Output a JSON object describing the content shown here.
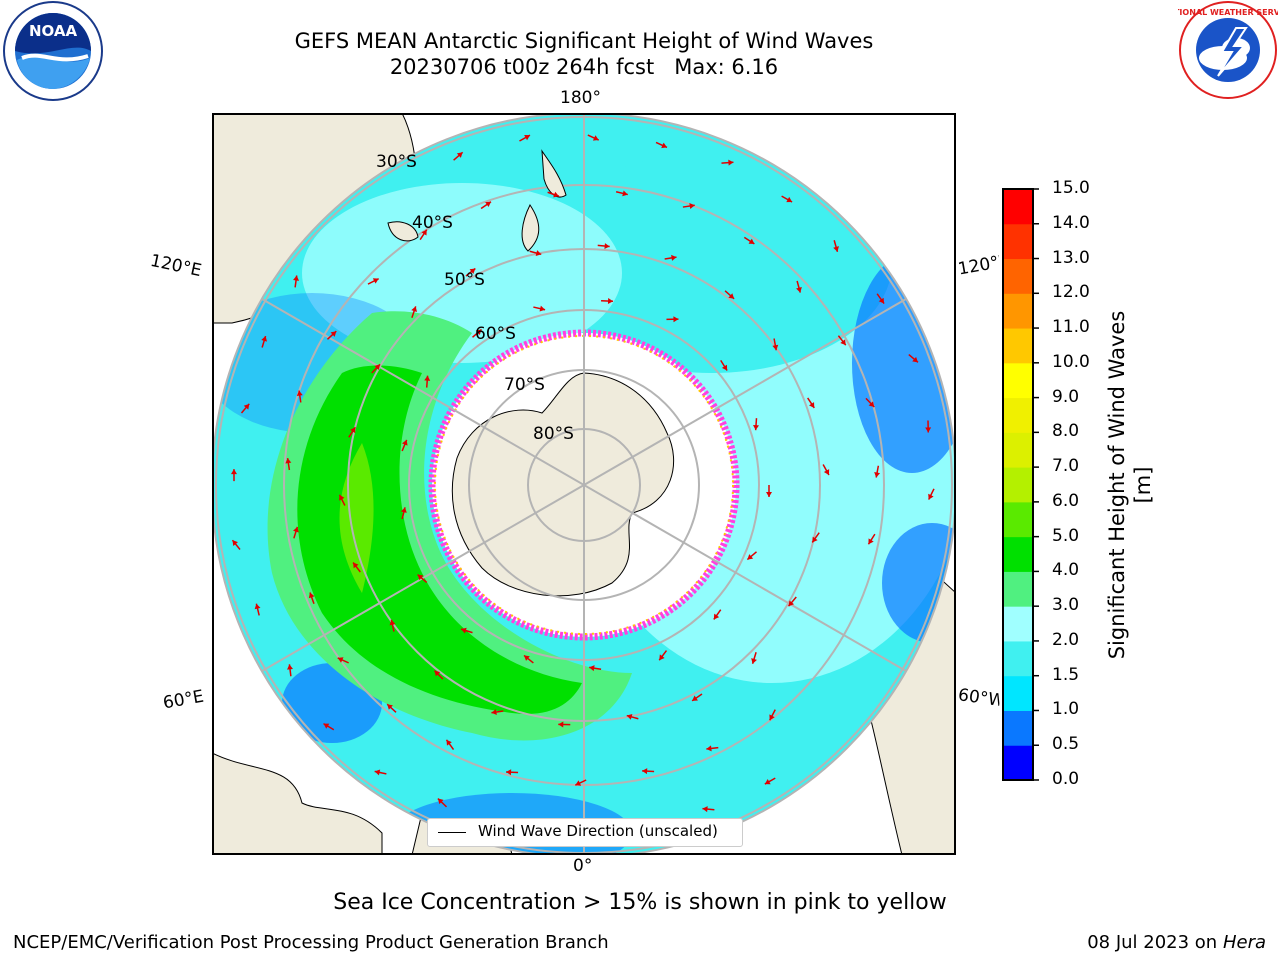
{
  "title": {
    "line1": "GEFS MEAN Antarctic Significant Height of Wind Waves",
    "line2": "20230706 t00z 264h fcst   Max: 6.16"
  },
  "logos": {
    "left": {
      "name": "noaa-logo",
      "text": "NOAA"
    },
    "right": {
      "name": "nws-logo",
      "text": "NATIONAL WEATHER SERVICE"
    }
  },
  "map": {
    "longitude_labels": {
      "top": "180°",
      "bottom": "0°",
      "left_upper": "120°E",
      "left_lower": "60°E",
      "right_upper": "120°W",
      "right_lower": "60°W"
    },
    "latitude_labels": [
      "30°S",
      "40°S",
      "50°S",
      "60°S",
      "70°S",
      "80°S"
    ]
  },
  "legend": {
    "text": "Wind Wave Direction (unscaled)"
  },
  "colorbar": {
    "label": "Significant Height of Wind Waves [m]",
    "ticks": [
      "0.0",
      "0.5",
      "1.0",
      "1.5",
      "2.0",
      "3.0",
      "4.0",
      "5.0",
      "6.0",
      "7.0",
      "8.0",
      "9.0",
      "10.0",
      "11.0",
      "12.0",
      "13.0",
      "14.0",
      "15.0"
    ],
    "colors": [
      "#0000ff",
      "#0a78ff",
      "#00e6ff",
      "#40f0f0",
      "#a0ffff",
      "#50f080",
      "#00e000",
      "#5aea00",
      "#b4f000",
      "#dcf000",
      "#f0f000",
      "#ffff00",
      "#ffc800",
      "#ff9600",
      "#ff6400",
      "#ff3200",
      "#ff0000"
    ]
  },
  "bottom_note": "Sea Ice Concentration > 15% is shown in pink to yellow",
  "footer": {
    "left": "NCEP/EMC/Verification Post Processing Product Generation Branch",
    "right_prefix": "08 Jul 2023 on ",
    "right_italic": "Hera"
  }
}
